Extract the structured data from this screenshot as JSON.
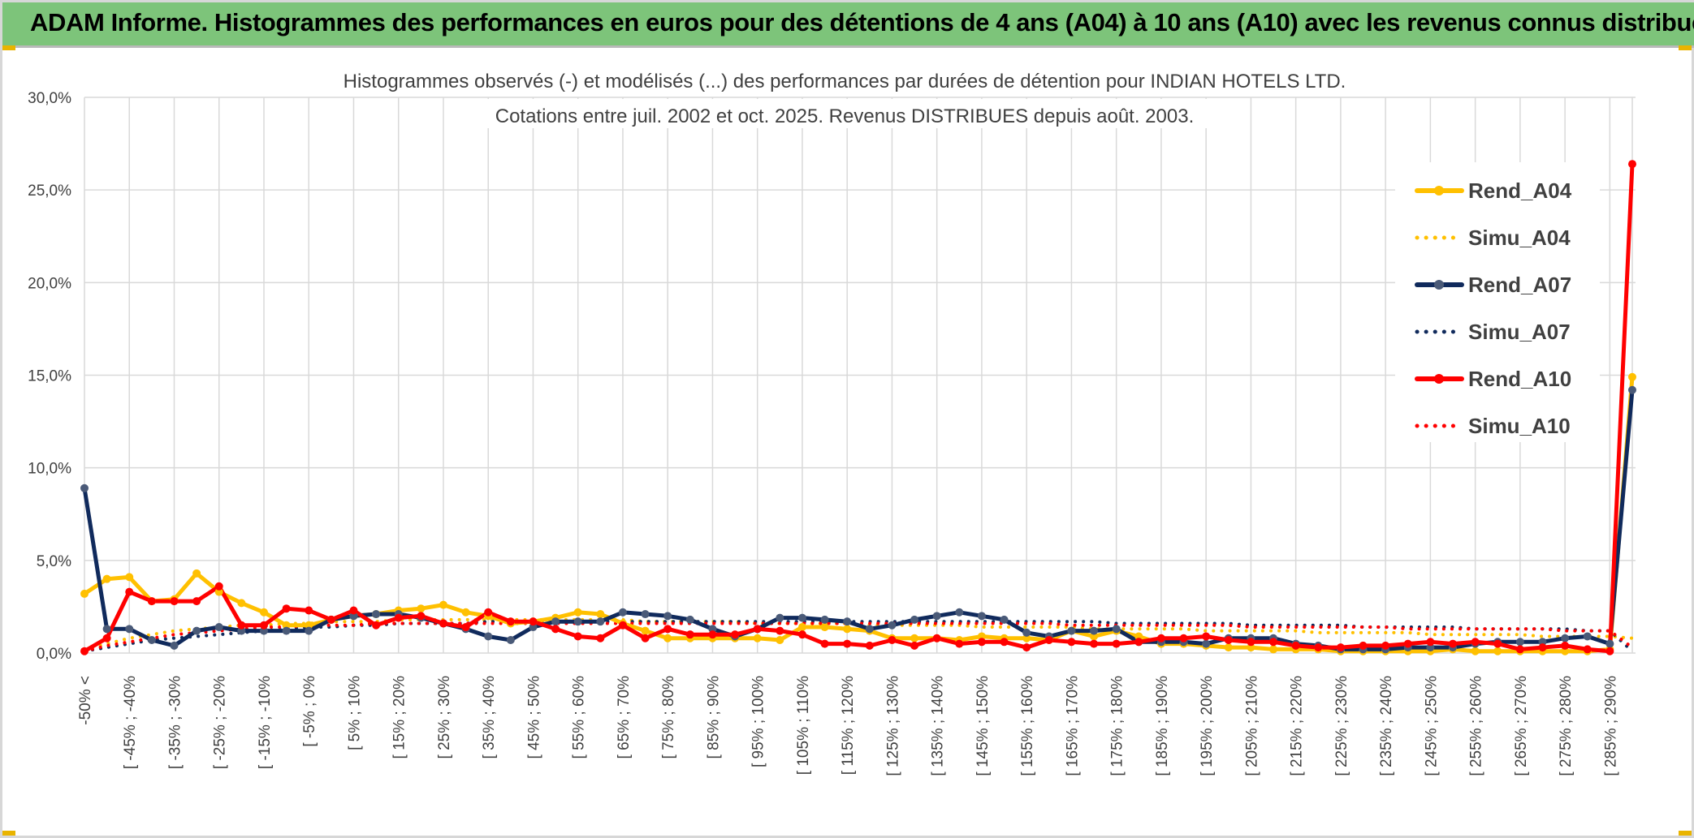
{
  "header": {
    "title": "ADAM Informe. Histogrammes des performances en euros pour des détentions de 4 ans (A04) à 10 ans (A10) avec les revenus connus distribués"
  },
  "colors": {
    "header_bg": "#7dc47a",
    "grid": "#d9d9d9",
    "text": "#404040",
    "series_A04": "#ffc000",
    "series_A07": "#102a5c",
    "series_A10": "#ff0000"
  },
  "chart_data": {
    "type": "line",
    "title_lines": [
      "Histogrammes observés (-) et modélisés (...) des performances par durées de détention pour INDIAN HOTELS LTD.",
      "Cotations entre juil. 2002 et oct. 2025. Revenus DISTRIBUES depuis août. 2003."
    ],
    "ylim": [
      0,
      30
    ],
    "yticks": [
      0,
      5,
      10,
      15,
      20,
      25,
      30
    ],
    "ytick_labels": [
      "0,0%",
      "5,0%",
      "10,0%",
      "15,0%",
      "20,0%",
      "25,0%",
      "30,0%"
    ],
    "xlabel": "",
    "ylabel": "",
    "grid": true,
    "legend_position": "right",
    "n_points": 70,
    "x_tick_labels": [
      "-50% <",
      "[ -45% ; -40%",
      "[ -35% ; -30%",
      "[ -25% ; -20%",
      "[ -15% ; -10%",
      "[ -5% ; 0%",
      "[ 5% ; 10%",
      "[ 15% ; 20%",
      "[ 25% ; 30%",
      "[ 35% ; 40%",
      "[ 45% ; 50%",
      "[ 55% ; 60%",
      "[ 65% ; 70%",
      "[ 75% ; 80%",
      "[ 85% ; 90%",
      "[ 95% ; 100%",
      "[ 105% ; 110%",
      "[ 115% ; 120%",
      "[ 125% ; 130%",
      "[ 135% ; 140%",
      "[ 145% ; 150%",
      "[ 155% ; 160%",
      "[ 165% ; 170%",
      "[ 175% ; 180%",
      "[ 185% ; 190%",
      "[ 195% ; 200%",
      "[ 205% ; 210%",
      "[ 215% ; 220%",
      "[ 225% ; 230%",
      "[ 235% ; 240%",
      "[ 245% ; 250%",
      "[ 255% ; 260%",
      "[ 265% ; 270%",
      "[ 275% ; 280%",
      "[ 285% ; 290%"
    ],
    "series": [
      {
        "name": "Rend_A04",
        "style": "solid",
        "color": "#ffc000",
        "values": [
          3.2,
          4.0,
          4.1,
          2.8,
          2.9,
          4.3,
          3.3,
          2.7,
          2.2,
          1.5,
          1.5,
          1.8,
          2.0,
          2.1,
          2.3,
          2.4,
          2.6,
          2.2,
          2.0,
          1.6,
          1.7,
          1.9,
          2.2,
          2.1,
          1.6,
          1.2,
          0.8,
          0.8,
          0.8,
          0.8,
          0.8,
          0.7,
          1.4,
          1.4,
          1.3,
          1.2,
          0.8,
          0.8,
          0.8,
          0.7,
          0.9,
          0.8,
          0.8,
          0.7,
          1.2,
          0.9,
          1.2,
          0.9,
          0.5,
          0.5,
          0.4,
          0.3,
          0.3,
          0.2,
          0.2,
          0.2,
          0.1,
          0.1,
          0.1,
          0.1,
          0.1,
          0.2,
          0.1,
          0.1,
          0.1,
          0.1,
          0.1,
          0.1,
          0.2,
          14.9
        ]
      },
      {
        "name": "Simu_A04",
        "style": "dotted",
        "color": "#ffc000",
        "values": [
          0.2,
          0.5,
          0.8,
          1.0,
          1.2,
          1.3,
          1.4,
          1.5,
          1.5,
          1.6,
          1.6,
          1.7,
          1.7,
          1.7,
          1.8,
          1.8,
          1.8,
          1.8,
          1.8,
          1.8,
          1.8,
          1.8,
          1.8,
          1.8,
          1.8,
          1.7,
          1.7,
          1.7,
          1.7,
          1.7,
          1.6,
          1.6,
          1.6,
          1.6,
          1.6,
          1.5,
          1.5,
          1.5,
          1.5,
          1.5,
          1.4,
          1.4,
          1.4,
          1.4,
          1.4,
          1.3,
          1.3,
          1.3,
          1.3,
          1.3,
          1.2,
          1.2,
          1.2,
          1.2,
          1.2,
          1.1,
          1.1,
          1.1,
          1.1,
          1.1,
          1.0,
          1.0,
          1.0,
          1.0,
          1.0,
          0.9,
          0.9,
          0.9,
          0.9,
          0.8
        ]
      },
      {
        "name": "Rend_A07",
        "style": "solid",
        "color": "#102a5c",
        "values": [
          8.9,
          1.3,
          1.3,
          0.7,
          0.4,
          1.2,
          1.4,
          1.2,
          1.2,
          1.2,
          1.2,
          1.8,
          2.0,
          2.1,
          2.1,
          1.9,
          1.6,
          1.3,
          0.9,
          0.7,
          1.4,
          1.7,
          1.7,
          1.7,
          2.2,
          2.1,
          2.0,
          1.8,
          1.3,
          0.9,
          1.3,
          1.9,
          1.9,
          1.8,
          1.7,
          1.3,
          1.5,
          1.8,
          2.0,
          2.2,
          2.0,
          1.8,
          1.1,
          0.9,
          1.2,
          1.2,
          1.3,
          0.6,
          0.6,
          0.6,
          0.5,
          0.8,
          0.8,
          0.8,
          0.5,
          0.4,
          0.2,
          0.2,
          0.2,
          0.3,
          0.3,
          0.3,
          0.5,
          0.6,
          0.6,
          0.6,
          0.8,
          0.9,
          0.5,
          14.2
        ]
      },
      {
        "name": "Simu_A07",
        "style": "dotted",
        "color": "#102a5c",
        "values": [
          0.1,
          0.3,
          0.5,
          0.7,
          0.8,
          0.9,
          1.0,
          1.1,
          1.2,
          1.3,
          1.4,
          1.4,
          1.5,
          1.5,
          1.6,
          1.6,
          1.6,
          1.6,
          1.7,
          1.7,
          1.7,
          1.7,
          1.7,
          1.7,
          1.7,
          1.7,
          1.7,
          1.7,
          1.7,
          1.7,
          1.7,
          1.7,
          1.7,
          1.7,
          1.7,
          1.7,
          1.7,
          1.7,
          1.7,
          1.7,
          1.7,
          1.7,
          1.7,
          1.7,
          1.7,
          1.7,
          1.6,
          1.6,
          1.6,
          1.6,
          1.6,
          1.6,
          1.5,
          1.5,
          1.5,
          1.5,
          1.5,
          1.4,
          1.4,
          1.4,
          1.4,
          1.4,
          1.3,
          1.3,
          1.3,
          1.3,
          1.3,
          1.2,
          1.2,
          0.1
        ]
      },
      {
        "name": "Rend_A10",
        "style": "solid",
        "color": "#ff0000",
        "values": [
          0.1,
          0.8,
          3.3,
          2.8,
          2.8,
          2.8,
          3.6,
          1.5,
          1.5,
          2.4,
          2.3,
          1.8,
          2.3,
          1.5,
          1.9,
          2.0,
          1.6,
          1.4,
          2.2,
          1.7,
          1.7,
          1.3,
          0.9,
          0.8,
          1.5,
          0.8,
          1.3,
          1.0,
          1.0,
          1.0,
          1.3,
          1.2,
          1.0,
          0.5,
          0.5,
          0.4,
          0.7,
          0.4,
          0.8,
          0.5,
          0.6,
          0.6,
          0.3,
          0.7,
          0.6,
          0.5,
          0.5,
          0.6,
          0.8,
          0.8,
          0.9,
          0.7,
          0.6,
          0.6,
          0.4,
          0.3,
          0.3,
          0.4,
          0.4,
          0.5,
          0.6,
          0.5,
          0.6,
          0.5,
          0.2,
          0.3,
          0.4,
          0.2,
          0.1,
          26.4
        ]
      },
      {
        "name": "Simu_A10",
        "style": "dotted",
        "color": "#ff0000",
        "values": [
          0.1,
          0.4,
          0.6,
          0.8,
          1.0,
          1.1,
          1.2,
          1.3,
          1.4,
          1.4,
          1.5,
          1.5,
          1.5,
          1.6,
          1.6,
          1.6,
          1.6,
          1.6,
          1.6,
          1.6,
          1.6,
          1.6,
          1.6,
          1.6,
          1.6,
          1.6,
          1.6,
          1.6,
          1.6,
          1.6,
          1.6,
          1.6,
          1.6,
          1.6,
          1.6,
          1.6,
          1.6,
          1.6,
          1.6,
          1.6,
          1.6,
          1.6,
          1.6,
          1.6,
          1.5,
          1.5,
          1.5,
          1.5,
          1.5,
          1.5,
          1.5,
          1.5,
          1.4,
          1.4,
          1.4,
          1.4,
          1.4,
          1.4,
          1.4,
          1.3,
          1.3,
          1.3,
          1.3,
          1.3,
          1.3,
          1.3,
          1.2,
          1.2,
          1.2,
          0.3
        ]
      }
    ]
  }
}
